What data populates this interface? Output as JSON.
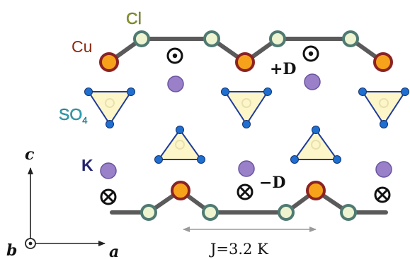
{
  "labels": {
    "cl": "Cl",
    "cu": "Cu",
    "so4_main": "SO",
    "so4_sub": "4",
    "k": "K",
    "plus_d": "+D",
    "minus_d": "−D",
    "axis_c": "c",
    "axis_a": "a",
    "axis_b": "b",
    "coupling": "J=3.2 K"
  },
  "colors": {
    "chain": "#5a5a5a",
    "cu_fill": "#f7a21b",
    "cu_stroke": "#8b2323",
    "cl_fill": "#eef3d0",
    "cl_stroke": "#4f7a72",
    "k_fill": "#9980c8",
    "k_stroke": "#6a54a0",
    "so4_fill": "#fdf6c8",
    "so4_stroke": "#1e3c9c",
    "so4_vertex": "#1f6fd0",
    "cl_label": "#8a9a20",
    "cu_label": "#8b2a10",
    "so4_label": "#2aa6b8",
    "k_label": "#23236e",
    "arrow": "#9a9a9a"
  },
  "icons": {
    "dot_symbol": "circle-dot-icon",
    "cross_symbol": "circle-cross-icon"
  }
}
